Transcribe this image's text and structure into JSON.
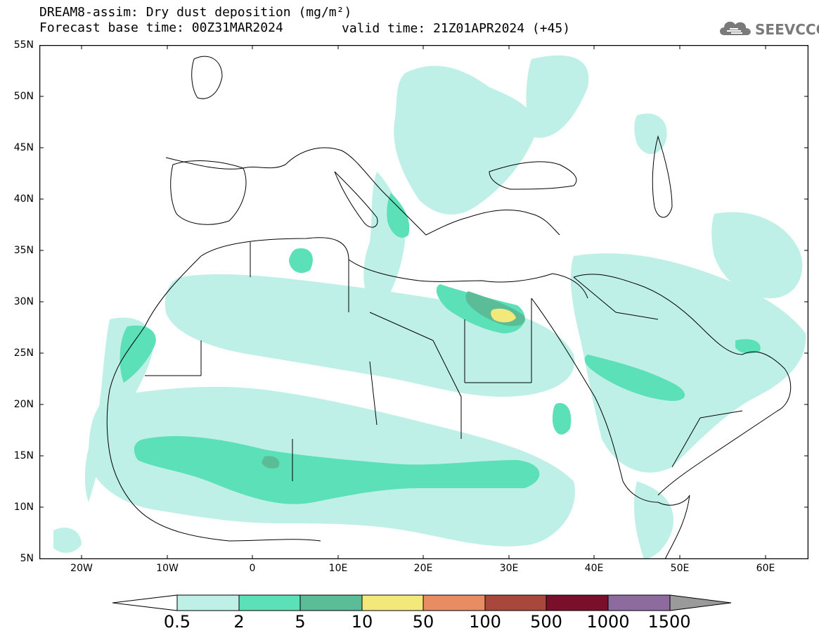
{
  "title": {
    "line1": "DREAM8-assim: Dry dust deposition (mg/m²)",
    "line2": "Forecast base time: 00Z31MAR2024",
    "valid": "valid time: 21Z01APR2024 (+45)"
  },
  "logo": {
    "text": "SEEVCCC",
    "icon": "cloud-logo-icon"
  },
  "axes": {
    "y_labels": [
      "55N",
      "50N",
      "45N",
      "40N",
      "35N",
      "30N",
      "25N",
      "20N",
      "15N",
      "10N",
      "5N"
    ],
    "x_labels": [
      "20W",
      "10W",
      "0",
      "10E",
      "20E",
      "30E",
      "40E",
      "50E",
      "60E"
    ],
    "lon_range": [
      -25,
      65
    ],
    "lat_range": [
      5,
      55
    ]
  },
  "colorbar": {
    "labels": [
      "0.5",
      "2",
      "5",
      "10",
      "50",
      "100",
      "500",
      "1000",
      "1500"
    ],
    "colors": [
      "#bff0e8",
      "#5ce0b8",
      "#5bbd98",
      "#f3e87a",
      "#e88c64",
      "#a8483c",
      "#7a0f2c",
      "#8e6b9e",
      "#9a9a9a"
    ],
    "min_arrow_color": "#ffffff",
    "max_arrow_color": "#9a9a9a"
  },
  "map_style": {
    "background": "#ffffff",
    "coastline": "#000000"
  }
}
